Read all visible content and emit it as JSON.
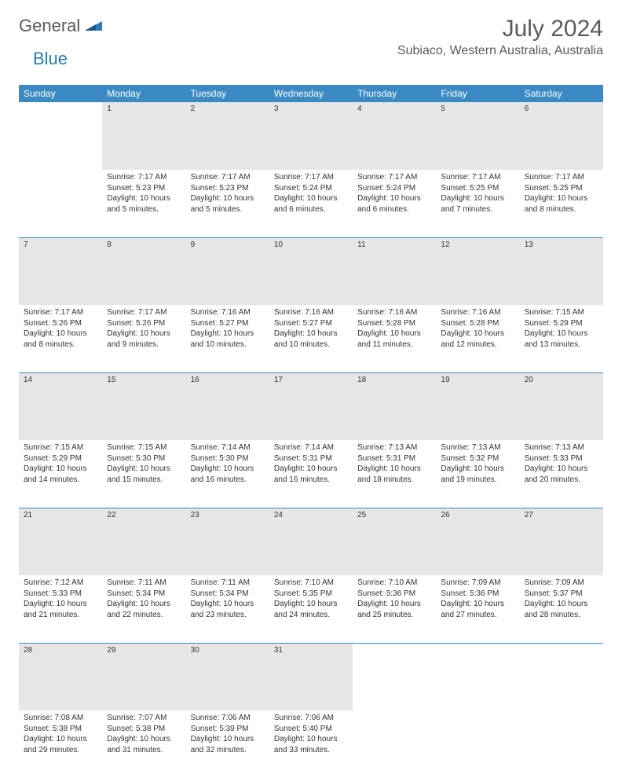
{
  "brand": {
    "general": "General",
    "blue": "Blue"
  },
  "title": "July 2024",
  "location": "Subiaco, Western Australia, Australia",
  "colors": {
    "header_bg": "#3b8ac4",
    "header_text": "#ffffff",
    "daynum_bg": "#e6e6e6",
    "border": "#3b8ac4",
    "text": "#333333",
    "title_text": "#5a5a5a"
  },
  "weekdays": [
    "Sunday",
    "Monday",
    "Tuesday",
    "Wednesday",
    "Thursday",
    "Friday",
    "Saturday"
  ],
  "weeks": [
    {
      "days": [
        null,
        {
          "num": "1",
          "sunrise": "Sunrise: 7:17 AM",
          "sunset": "Sunset: 5:23 PM",
          "daylight1": "Daylight: 10 hours",
          "daylight2": "and 5 minutes."
        },
        {
          "num": "2",
          "sunrise": "Sunrise: 7:17 AM",
          "sunset": "Sunset: 5:23 PM",
          "daylight1": "Daylight: 10 hours",
          "daylight2": "and 5 minutes."
        },
        {
          "num": "3",
          "sunrise": "Sunrise: 7:17 AM",
          "sunset": "Sunset: 5:24 PM",
          "daylight1": "Daylight: 10 hours",
          "daylight2": "and 6 minutes."
        },
        {
          "num": "4",
          "sunrise": "Sunrise: 7:17 AM",
          "sunset": "Sunset: 5:24 PM",
          "daylight1": "Daylight: 10 hours",
          "daylight2": "and 6 minutes."
        },
        {
          "num": "5",
          "sunrise": "Sunrise: 7:17 AM",
          "sunset": "Sunset: 5:25 PM",
          "daylight1": "Daylight: 10 hours",
          "daylight2": "and 7 minutes."
        },
        {
          "num": "6",
          "sunrise": "Sunrise: 7:17 AM",
          "sunset": "Sunset: 5:25 PM",
          "daylight1": "Daylight: 10 hours",
          "daylight2": "and 8 minutes."
        }
      ]
    },
    {
      "days": [
        {
          "num": "7",
          "sunrise": "Sunrise: 7:17 AM",
          "sunset": "Sunset: 5:26 PM",
          "daylight1": "Daylight: 10 hours",
          "daylight2": "and 8 minutes."
        },
        {
          "num": "8",
          "sunrise": "Sunrise: 7:17 AM",
          "sunset": "Sunset: 5:26 PM",
          "daylight1": "Daylight: 10 hours",
          "daylight2": "and 9 minutes."
        },
        {
          "num": "9",
          "sunrise": "Sunrise: 7:16 AM",
          "sunset": "Sunset: 5:27 PM",
          "daylight1": "Daylight: 10 hours",
          "daylight2": "and 10 minutes."
        },
        {
          "num": "10",
          "sunrise": "Sunrise: 7:16 AM",
          "sunset": "Sunset: 5:27 PM",
          "daylight1": "Daylight: 10 hours",
          "daylight2": "and 10 minutes."
        },
        {
          "num": "11",
          "sunrise": "Sunrise: 7:16 AM",
          "sunset": "Sunset: 5:28 PM",
          "daylight1": "Daylight: 10 hours",
          "daylight2": "and 11 minutes."
        },
        {
          "num": "12",
          "sunrise": "Sunrise: 7:16 AM",
          "sunset": "Sunset: 5:28 PM",
          "daylight1": "Daylight: 10 hours",
          "daylight2": "and 12 minutes."
        },
        {
          "num": "13",
          "sunrise": "Sunrise: 7:15 AM",
          "sunset": "Sunset: 5:29 PM",
          "daylight1": "Daylight: 10 hours",
          "daylight2": "and 13 minutes."
        }
      ]
    },
    {
      "days": [
        {
          "num": "14",
          "sunrise": "Sunrise: 7:15 AM",
          "sunset": "Sunset: 5:29 PM",
          "daylight1": "Daylight: 10 hours",
          "daylight2": "and 14 minutes."
        },
        {
          "num": "15",
          "sunrise": "Sunrise: 7:15 AM",
          "sunset": "Sunset: 5:30 PM",
          "daylight1": "Daylight: 10 hours",
          "daylight2": "and 15 minutes."
        },
        {
          "num": "16",
          "sunrise": "Sunrise: 7:14 AM",
          "sunset": "Sunset: 5:30 PM",
          "daylight1": "Daylight: 10 hours",
          "daylight2": "and 16 minutes."
        },
        {
          "num": "17",
          "sunrise": "Sunrise: 7:14 AM",
          "sunset": "Sunset: 5:31 PM",
          "daylight1": "Daylight: 10 hours",
          "daylight2": "and 16 minutes."
        },
        {
          "num": "18",
          "sunrise": "Sunrise: 7:13 AM",
          "sunset": "Sunset: 5:31 PM",
          "daylight1": "Daylight: 10 hours",
          "daylight2": "and 18 minutes."
        },
        {
          "num": "19",
          "sunrise": "Sunrise: 7:13 AM",
          "sunset": "Sunset: 5:32 PM",
          "daylight1": "Daylight: 10 hours",
          "daylight2": "and 19 minutes."
        },
        {
          "num": "20",
          "sunrise": "Sunrise: 7:13 AM",
          "sunset": "Sunset: 5:33 PM",
          "daylight1": "Daylight: 10 hours",
          "daylight2": "and 20 minutes."
        }
      ]
    },
    {
      "days": [
        {
          "num": "21",
          "sunrise": "Sunrise: 7:12 AM",
          "sunset": "Sunset: 5:33 PM",
          "daylight1": "Daylight: 10 hours",
          "daylight2": "and 21 minutes."
        },
        {
          "num": "22",
          "sunrise": "Sunrise: 7:11 AM",
          "sunset": "Sunset: 5:34 PM",
          "daylight1": "Daylight: 10 hours",
          "daylight2": "and 22 minutes."
        },
        {
          "num": "23",
          "sunrise": "Sunrise: 7:11 AM",
          "sunset": "Sunset: 5:34 PM",
          "daylight1": "Daylight: 10 hours",
          "daylight2": "and 23 minutes."
        },
        {
          "num": "24",
          "sunrise": "Sunrise: 7:10 AM",
          "sunset": "Sunset: 5:35 PM",
          "daylight1": "Daylight: 10 hours",
          "daylight2": "and 24 minutes."
        },
        {
          "num": "25",
          "sunrise": "Sunrise: 7:10 AM",
          "sunset": "Sunset: 5:36 PM",
          "daylight1": "Daylight: 10 hours",
          "daylight2": "and 25 minutes."
        },
        {
          "num": "26",
          "sunrise": "Sunrise: 7:09 AM",
          "sunset": "Sunset: 5:36 PM",
          "daylight1": "Daylight: 10 hours",
          "daylight2": "and 27 minutes."
        },
        {
          "num": "27",
          "sunrise": "Sunrise: 7:09 AM",
          "sunset": "Sunset: 5:37 PM",
          "daylight1": "Daylight: 10 hours",
          "daylight2": "and 28 minutes."
        }
      ]
    },
    {
      "days": [
        {
          "num": "28",
          "sunrise": "Sunrise: 7:08 AM",
          "sunset": "Sunset: 5:38 PM",
          "daylight1": "Daylight: 10 hours",
          "daylight2": "and 29 minutes."
        },
        {
          "num": "29",
          "sunrise": "Sunrise: 7:07 AM",
          "sunset": "Sunset: 5:38 PM",
          "daylight1": "Daylight: 10 hours",
          "daylight2": "and 31 minutes."
        },
        {
          "num": "30",
          "sunrise": "Sunrise: 7:06 AM",
          "sunset": "Sunset: 5:39 PM",
          "daylight1": "Daylight: 10 hours",
          "daylight2": "and 32 minutes."
        },
        {
          "num": "31",
          "sunrise": "Sunrise: 7:06 AM",
          "sunset": "Sunset: 5:40 PM",
          "daylight1": "Daylight: 10 hours",
          "daylight2": "and 33 minutes."
        },
        null,
        null,
        null
      ]
    }
  ]
}
